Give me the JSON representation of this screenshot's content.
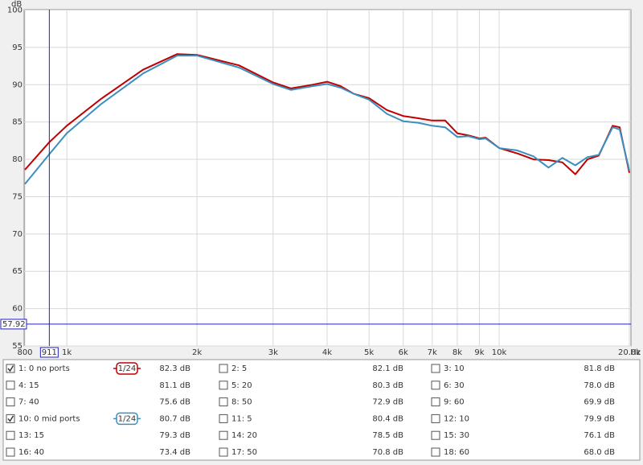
{
  "chart_data": {
    "type": "line",
    "y_unit": "dB",
    "x_unit": "Hz",
    "xscale": "log",
    "grid": true,
    "xlim": [
      800,
      20000
    ],
    "xticks": [
      800,
      {
        "value": 1000,
        "label": "1k"
      },
      {
        "value": 2000,
        "label": "2k"
      },
      {
        "value": 3000,
        "label": "3k"
      },
      {
        "value": 4000,
        "label": "4k"
      },
      {
        "value": 5000,
        "label": "5k"
      },
      {
        "value": 6000,
        "label": "6k"
      },
      {
        "value": 7000,
        "label": "7k"
      },
      {
        "value": 8000,
        "label": "8k"
      },
      {
        "value": 9000,
        "label": "9k"
      },
      {
        "value": 10000,
        "label": "10k"
      },
      {
        "value": 20000,
        "label": "20.0k"
      }
    ],
    "ylim": [
      55,
      100
    ],
    "yticks": [
      55,
      60,
      65,
      70,
      75,
      80,
      85,
      90,
      95,
      100
    ],
    "cursor": {
      "x": 911,
      "y": 57.92
    },
    "x": [
      800,
      911,
      1000,
      1200,
      1500,
      1800,
      2000,
      2500,
      3000,
      3300,
      3700,
      4000,
      4300,
      4600,
      5000,
      5500,
      6000,
      6500,
      7000,
      7500,
      8000,
      8500,
      9000,
      9300,
      10000,
      11000,
      12000,
      13000,
      14000,
      15000,
      16000,
      17000,
      18300,
      19000,
      20000
    ],
    "series": [
      {
        "name": "1: 0 no ports",
        "color": "#c00000",
        "checked": true,
        "smoothing": "1/24",
        "readout": 82.3,
        "readout_label": "82.3 dB",
        "values": [
          78.6,
          82.3,
          84.5,
          88.1,
          92.0,
          94.1,
          94.0,
          92.6,
          90.3,
          89.5,
          90.0,
          90.4,
          89.8,
          88.8,
          88.2,
          86.6,
          85.8,
          85.5,
          85.2,
          85.2,
          83.5,
          83.2,
          82.8,
          82.9,
          81.5,
          80.8,
          80.0,
          79.9,
          79.6,
          78.0,
          80.0,
          80.5,
          84.5,
          84.3,
          78.2
        ]
      },
      {
        "name": "2: 5",
        "color": "#209020",
        "checked": false,
        "readout": 82.1,
        "readout_label": "82.1 dB"
      },
      {
        "name": "3: 10",
        "color": "#4848c0",
        "checked": false,
        "readout": 81.8,
        "readout_label": "81.8 dB"
      },
      {
        "name": "4: 15",
        "color": "#c040c0",
        "checked": false,
        "readout": 81.1,
        "readout_label": "81.1 dB"
      },
      {
        "name": "5: 20",
        "color": "#2098a8",
        "checked": false,
        "readout": 80.3,
        "readout_label": "80.3 dB"
      },
      {
        "name": "6: 30",
        "color": "#d09000",
        "checked": false,
        "readout": 78.0,
        "readout_label": "78.0 dB"
      },
      {
        "name": "7: 40",
        "color": "#30a030",
        "checked": false,
        "readout": 75.6,
        "readout_label": "75.6 dB"
      },
      {
        "name": "8: 50",
        "color": "#8048c0",
        "checked": false,
        "readout": 72.9,
        "readout_label": "72.9 dB"
      },
      {
        "name": "9: 60",
        "color": "#c020c0",
        "checked": false,
        "readout": 69.9,
        "readout_label": "69.9 dB"
      },
      {
        "name": "10: 0 mid ports",
        "color": "#3a8fc0",
        "checked": true,
        "smoothing": "1/24",
        "readout": 80.7,
        "readout_label": "80.7 dB",
        "values": [
          76.7,
          80.7,
          83.5,
          87.4,
          91.5,
          93.9,
          93.9,
          92.3,
          90.1,
          89.3,
          89.8,
          90.1,
          89.6,
          88.8,
          88.0,
          86.1,
          85.1,
          84.9,
          84.5,
          84.3,
          83.0,
          83.1,
          82.7,
          82.8,
          81.5,
          81.2,
          80.4,
          78.9,
          80.2,
          79.2,
          80.3,
          80.6,
          84.3,
          84.0,
          78.5
        ]
      },
      {
        "name": "11: 5",
        "color": "#d00000",
        "checked": false,
        "readout": 80.4,
        "readout_label": "80.4 dB"
      },
      {
        "name": "12: 10",
        "color": "#008000",
        "checked": false,
        "readout": 79.9,
        "readout_label": "79.9 dB"
      },
      {
        "name": "13: 15",
        "color": "#4060d0",
        "checked": false,
        "readout": 79.3,
        "readout_label": "79.3 dB"
      },
      {
        "name": "14: 20",
        "color": "#c040c0",
        "checked": false,
        "readout": 78.5,
        "readout_label": "78.5 dB"
      },
      {
        "name": "15: 30",
        "color": "#2098a8",
        "checked": false,
        "readout": 76.1,
        "readout_label": "76.1 dB"
      },
      {
        "name": "16: 40",
        "color": "#d09000",
        "checked": false,
        "readout": 73.4,
        "readout_label": "73.4 dB"
      },
      {
        "name": "17: 50",
        "color": "#30a030",
        "checked": false,
        "readout": 70.8,
        "readout_label": "70.8 dB"
      },
      {
        "name": "18: 60",
        "color": "#8048c0",
        "checked": false,
        "readout": 68.0,
        "readout_label": "68.0 dB"
      }
    ]
  }
}
